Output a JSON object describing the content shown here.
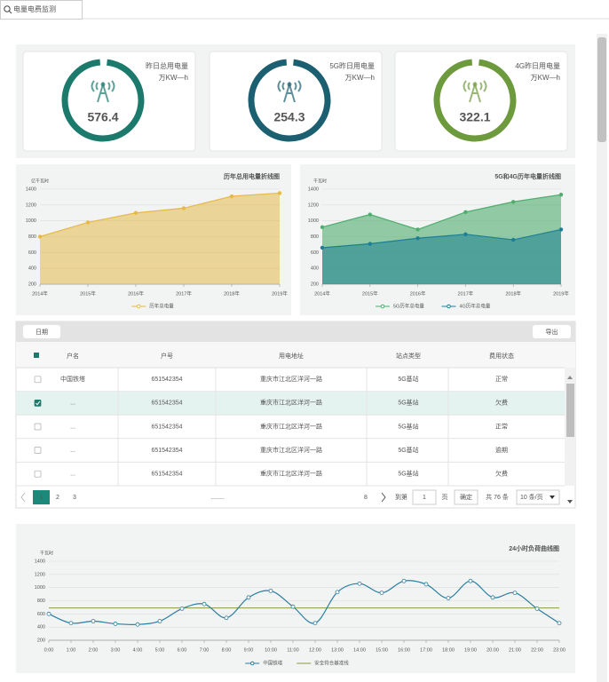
{
  "tab": "电量电费监测",
  "gauges": [
    {
      "value": 576.4,
      "label": "昨日总用电量",
      "unit": "万KW—h",
      "color": "#1c7a6c"
    },
    {
      "value": 254.3,
      "label": "5G昨日用电量",
      "unit": "万KW—h",
      "color": "#1b5f70"
    },
    {
      "value": 322.1,
      "label": "4G昨日用电量",
      "unit": "万KW—h",
      "color": "#6e9a3e"
    }
  ],
  "chart_data": [
    {
      "type": "area",
      "title": "历年总用电量折线图",
      "y_label": "亿千瓦时",
      "categories": [
        "2014年",
        "2015年",
        "2016年",
        "2017年",
        "2018年",
        "2019年"
      ],
      "series": [
        {
          "name": "历年总电量",
          "color": "#e6b94a",
          "values": [
            800,
            980,
            1100,
            1160,
            1310,
            1350
          ]
        }
      ],
      "ylim": [
        200,
        1400
      ],
      "yticks": [
        200,
        400,
        600,
        800,
        1000,
        1200,
        1400
      ],
      "grid": true
    },
    {
      "type": "area",
      "title": "5G和4G历年电量折线图",
      "y_label": "千瓦时",
      "categories": [
        "2014年",
        "2015年",
        "2016年",
        "2017年",
        "2018年",
        "2019年"
      ],
      "series": [
        {
          "name": "5G历年总电量",
          "color": "#4fae6e",
          "values": [
            920,
            1080,
            890,
            1110,
            1240,
            1330
          ]
        },
        {
          "name": "4G历年总电量",
          "color": "#1d7f95",
          "values": [
            660,
            710,
            780,
            830,
            760,
            890
          ]
        }
      ],
      "ylim": [
        200,
        1400
      ],
      "yticks": [
        200,
        400,
        600,
        800,
        1000,
        1200,
        1400
      ],
      "grid": true
    },
    {
      "type": "line",
      "smooth": true,
      "title": "24小时负荷曲线图",
      "y_label": "千瓦时",
      "categories": [
        "0:00",
        "1:00",
        "2:00",
        "3:00",
        "4:00",
        "5:00",
        "6:00",
        "7:00",
        "8:00",
        "9:00",
        "10:00",
        "11:00",
        "12:00",
        "13:00",
        "14:00",
        "15:00",
        "16:00",
        "17:00",
        "18:00",
        "19:00",
        "20:00",
        "21:00",
        "22:00",
        "23:00"
      ],
      "series": [
        {
          "name": "中国铁塔",
          "color": "#2a7ea0",
          "values": [
            600,
            460,
            490,
            450,
            440,
            490,
            680,
            750,
            540,
            850,
            950,
            710,
            460,
            930,
            1060,
            920,
            1100,
            1050,
            840,
            1100,
            850,
            920,
            680,
            460
          ]
        }
      ],
      "reference_lines": [
        {
          "name": "安全符合基准线",
          "value": 690,
          "color": "#8c9a3c"
        }
      ],
      "ylim": [
        200,
        1400
      ],
      "yticks": [
        200,
        400,
        600,
        800,
        1000,
        1200,
        1400
      ],
      "grid": true
    }
  ],
  "table": {
    "buttons": {
      "date": "日期",
      "export": "导出"
    },
    "columns": [
      "户名",
      "户号",
      "用电地址",
      "站点类型",
      "费用状态"
    ],
    "rows": [
      [
        "中国铁塔",
        "651542354",
        "重庆市江北区洋河一路",
        "5G基站",
        "正常"
      ],
      [
        "...",
        "651542354",
        "重庆市江北区洋河一路",
        "5G基站",
        "欠费"
      ],
      [
        "...",
        "651542354",
        "重庆市江北区洋河一路",
        "5G基站",
        "正常"
      ],
      [
        "...",
        "651542354",
        "重庆市江北区洋河一路",
        "5G基站",
        "逾期"
      ],
      [
        "...",
        "651542354",
        "重庆市江北区洋河一路",
        "5G基站",
        "欠费"
      ]
    ],
    "checked": [
      false,
      true,
      false,
      false,
      false
    ]
  },
  "pagination": {
    "pages": [
      "1",
      "2",
      "3"
    ],
    "ellipsis": "........",
    "last": "8",
    "goto": "到第",
    "page_input": "1",
    "page_unit": "页",
    "confirm": "确定",
    "total": "共 76 条",
    "page_size": "10 条/页"
  }
}
